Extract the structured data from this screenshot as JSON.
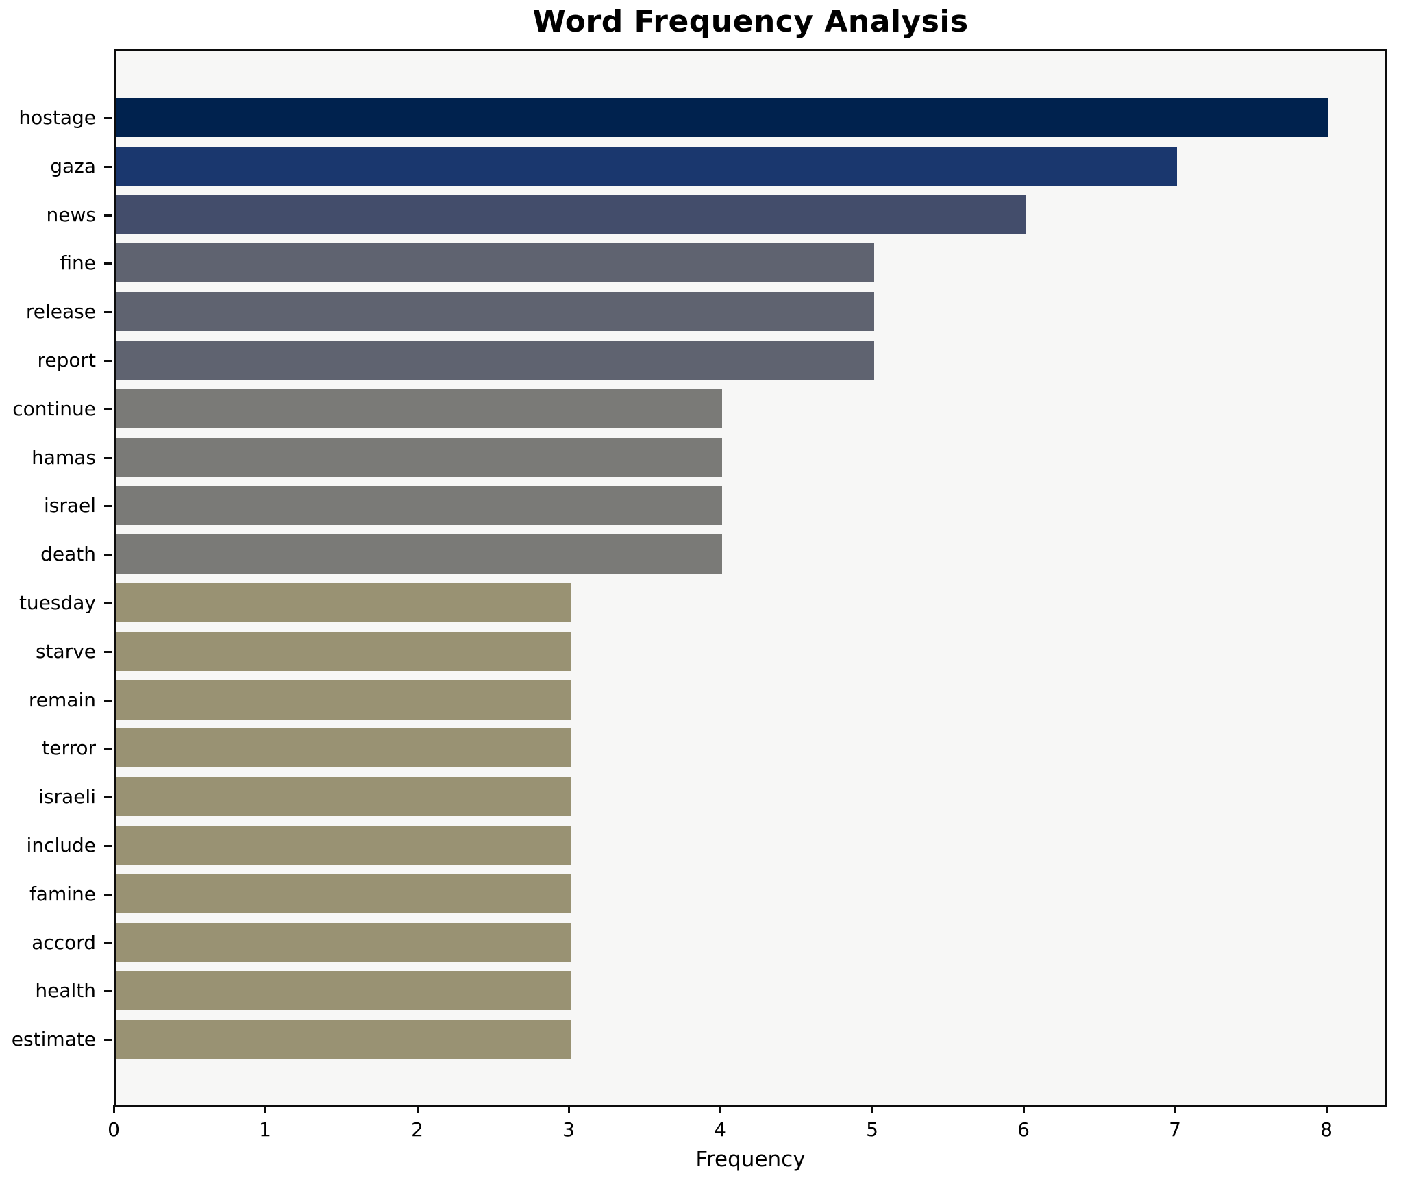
{
  "figure": {
    "background": "#ffffff",
    "plot_background": "#f7f7f6",
    "frame_color": "#0c0c0c"
  },
  "chart_data": {
    "type": "bar",
    "orientation": "horizontal",
    "title": "Word Frequency Analysis",
    "xlabel": "Frequency",
    "ylabel": "",
    "categories": [
      "hostage",
      "gaza",
      "news",
      "fine",
      "release",
      "report",
      "continue",
      "hamas",
      "israel",
      "death",
      "tuesday",
      "starve",
      "remain",
      "terror",
      "israeli",
      "include",
      "famine",
      "accord",
      "health",
      "estimate"
    ],
    "values": [
      8,
      7,
      6,
      5,
      5,
      5,
      4,
      4,
      4,
      4,
      3,
      3,
      3,
      3,
      3,
      3,
      3,
      3,
      3,
      3
    ],
    "xlim": [
      0,
      8.4
    ],
    "xticks": [
      0,
      1,
      2,
      3,
      4,
      5,
      6,
      7,
      8
    ],
    "grid": false,
    "legend_position": "none",
    "bar_colors_by_value": {
      "8": "#00224e",
      "7": "#1a376e",
      "6": "#434d6b",
      "5": "#5f6370",
      "4": "#7a7a77",
      "3": "#999273"
    }
  }
}
